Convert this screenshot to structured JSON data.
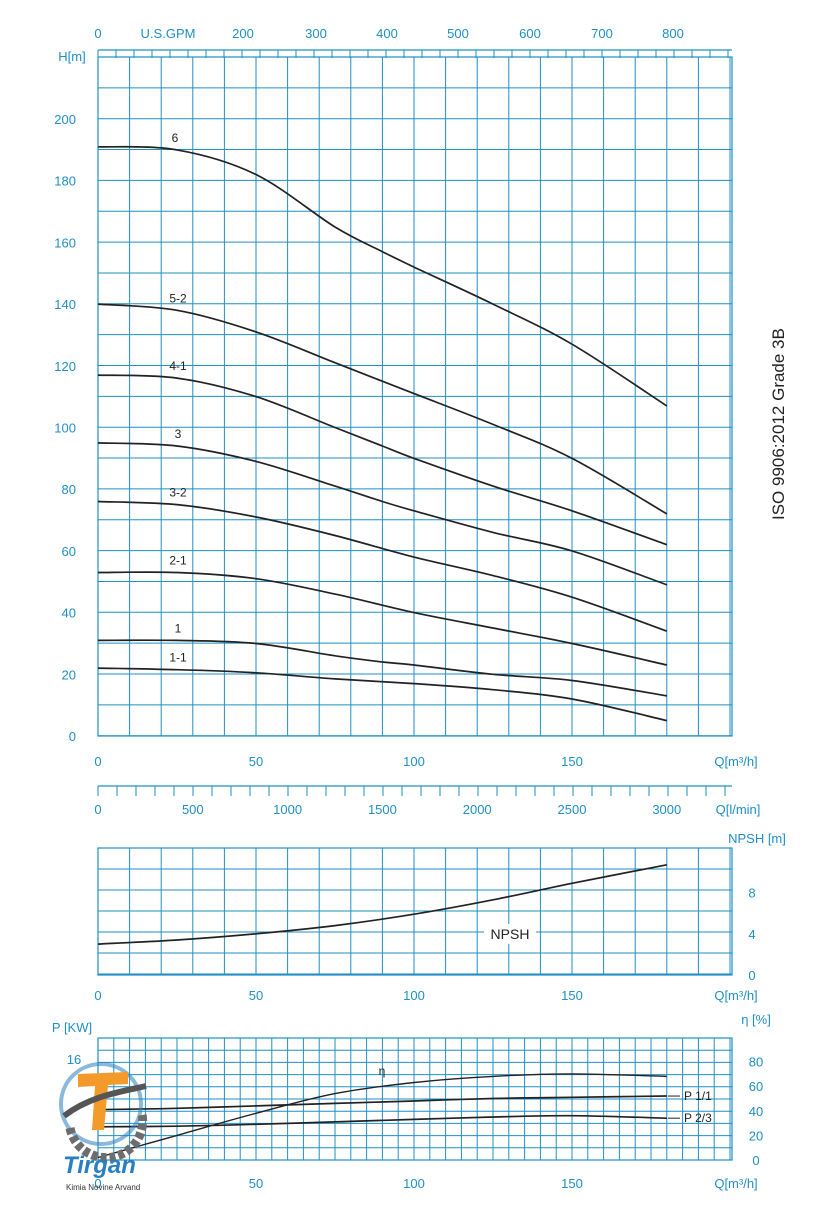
{
  "vertical_label": "ISO  9906:2012   Grade 3B",
  "colors": {
    "grid": "#1f8fc4",
    "curve": "#222222",
    "logo_orange": "#f39a2a",
    "logo_blue": "#2a7fc0",
    "logo_gray": "#6d6d6d"
  },
  "chart_data": [
    {
      "type": "line",
      "title": "",
      "ylabel": "H[m]",
      "xlabel": "Q[m³/h]",
      "top_axis_label": "U.S.GPM",
      "top_ticks": [
        "0",
        "200",
        "300",
        "400",
        "500",
        "600",
        "700",
        "800"
      ],
      "secondary_axis_label": "Q[l/min]",
      "secondary_ticks": [
        "0",
        "500",
        "1000",
        "1500",
        "2000",
        "2500",
        "3000"
      ],
      "x_ticks": [
        "0",
        "50",
        "100",
        "150"
      ],
      "y_ticks": [
        "0",
        "20",
        "40",
        "60",
        "80",
        "100",
        "120",
        "140",
        "160",
        "180",
        "200"
      ],
      "xlim": [
        0,
        200
      ],
      "ylim": [
        0,
        220
      ],
      "grid": true,
      "series": [
        {
          "name": "6",
          "x": [
            0,
            25,
            50,
            75,
            90,
            100,
            125,
            150,
            180
          ],
          "y": [
            191,
            190,
            182,
            165,
            157,
            152,
            140,
            127,
            107
          ]
        },
        {
          "name": "5-2",
          "x": [
            0,
            25,
            50,
            75,
            100,
            125,
            150,
            180
          ],
          "y": [
            140,
            138,
            131,
            121,
            111,
            101,
            90,
            72
          ]
        },
        {
          "name": "4-1",
          "x": [
            0,
            25,
            50,
            75,
            90,
            100,
            125,
            150,
            180
          ],
          "y": [
            117,
            116,
            110,
            100,
            94,
            90,
            81,
            73,
            62
          ]
        },
        {
          "name": "3",
          "x": [
            0,
            25,
            50,
            75,
            90,
            100,
            125,
            150,
            180
          ],
          "y": [
            95,
            94,
            89,
            81,
            76,
            73,
            66,
            60,
            49
          ]
        },
        {
          "name": "3-2",
          "x": [
            0,
            25,
            50,
            75,
            100,
            125,
            150,
            180
          ],
          "y": [
            76,
            75,
            71,
            65,
            58,
            52,
            45,
            34
          ]
        },
        {
          "name": "2-1",
          "x": [
            0,
            25,
            50,
            75,
            100,
            125,
            150,
            180
          ],
          "y": [
            53,
            53,
            51,
            46,
            40,
            35,
            30,
            23
          ]
        },
        {
          "name": "1",
          "x": [
            0,
            25,
            50,
            75,
            90,
            100,
            125,
            150,
            180
          ],
          "y": [
            31,
            31,
            30,
            26,
            24,
            23,
            20,
            18,
            13
          ]
        },
        {
          "name": "1-1",
          "x": [
            0,
            25,
            50,
            75,
            100,
            125,
            150,
            180
          ],
          "y": [
            22,
            21.5,
            20.5,
            18.5,
            17,
            15,
            12,
            5
          ]
        }
      ]
    },
    {
      "type": "line",
      "title": "",
      "ylabel": "NPSH [m]",
      "xlabel": "Q[m³/h]",
      "x_ticks": [
        "0",
        "50",
        "100",
        "150"
      ],
      "y_ticks": [
        "0",
        "4",
        "8"
      ],
      "xlim": [
        0,
        200
      ],
      "ylim": [
        0,
        13
      ],
      "grid": true,
      "series": [
        {
          "name": "NPSH",
          "x": [
            0,
            25,
            50,
            75,
            100,
            125,
            150,
            180
          ],
          "y": [
            3.0,
            3.4,
            4.0,
            4.8,
            5.9,
            7.3,
            8.9,
            10.7
          ]
        }
      ]
    },
    {
      "type": "line",
      "title": "",
      "ylabel": "P [KW]",
      "y2label": "η [%]",
      "xlabel": "Q[m³/h]",
      "x_ticks": [
        "0",
        "50",
        "100",
        "150"
      ],
      "y_ticks": [
        "16"
      ],
      "y2_ticks": [
        "0",
        "20",
        "40",
        "60",
        "80"
      ],
      "xlim": [
        0,
        200
      ],
      "y2lim": [
        0,
        100
      ],
      "grid": true,
      "series": [
        {
          "name": "η",
          "axis": "right",
          "x": [
            0,
            25,
            50,
            75,
            100,
            125,
            150,
            180
          ],
          "y": [
            2,
            20,
            38,
            54,
            63,
            68,
            70,
            68
          ]
        },
        {
          "name": "P 1/1",
          "axis": "right",
          "x": [
            0,
            25,
            50,
            75,
            100,
            125,
            150,
            180
          ],
          "y": [
            41,
            42,
            44,
            46,
            48,
            50,
            51,
            52
          ]
        },
        {
          "name": "P 2/3",
          "axis": "right",
          "x": [
            0,
            25,
            50,
            75,
            100,
            125,
            150,
            180
          ],
          "y": [
            27,
            27.5,
            29,
            31,
            33,
            35,
            36,
            34
          ]
        }
      ],
      "logo": {
        "brand": "Tirgan",
        "tagline": "Kimia Novine Arvand"
      }
    }
  ]
}
